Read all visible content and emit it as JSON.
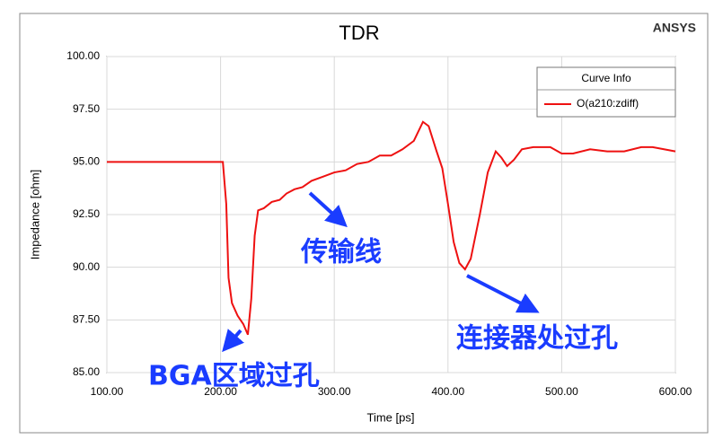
{
  "chart_data": {
    "type": "line",
    "title": "TDR",
    "brand": "ANSYS",
    "x_label": "Time [ps]",
    "y_label": "Impedance [ohm]",
    "legend_title": "Curve Info",
    "legend_position": "upper right",
    "grid": true,
    "xlim": [
      100,
      600
    ],
    "ylim": [
      85,
      100
    ],
    "xticks": [
      {
        "value": 100,
        "label": "100.00"
      },
      {
        "value": 200,
        "label": "200.00"
      },
      {
        "value": 300,
        "label": "300.00"
      },
      {
        "value": 400,
        "label": "400.00"
      },
      {
        "value": 500,
        "label": "500.00"
      },
      {
        "value": 600,
        "label": "600.00"
      }
    ],
    "yticks": [
      {
        "value": 85,
        "label": "85.00"
      },
      {
        "value": 87.5,
        "label": "87.50"
      },
      {
        "value": 90,
        "label": "90.00"
      },
      {
        "value": 92.5,
        "label": "92.50"
      },
      {
        "value": 95,
        "label": "95.00"
      },
      {
        "value": 97.5,
        "label": "97.50"
      },
      {
        "value": 100,
        "label": "100.00"
      }
    ],
    "x": [
      100,
      200,
      202,
      205,
      207,
      210,
      215,
      220,
      224,
      227,
      230,
      233,
      238,
      245,
      252,
      258,
      265,
      272,
      280,
      290,
      300,
      310,
      320,
      330,
      340,
      350,
      360,
      370,
      378,
      383,
      390,
      395,
      400,
      405,
      410,
      415,
      420,
      428,
      435,
      442,
      447,
      452,
      458,
      465,
      475,
      490,
      500,
      510,
      525,
      540,
      555,
      570,
      580,
      590,
      600
    ],
    "series": [
      {
        "name": "O(a210:zdiff)",
        "color": "#ee1111",
        "values": [
          95,
          95,
          95,
          93,
          89.5,
          88.3,
          87.7,
          87.3,
          86.8,
          88.5,
          91.5,
          92.7,
          92.8,
          93.1,
          93.2,
          93.5,
          93.7,
          93.8,
          94.1,
          94.3,
          94.5,
          94.6,
          94.9,
          95.0,
          95.3,
          95.3,
          95.6,
          96.0,
          96.9,
          96.7,
          95.5,
          94.7,
          93.0,
          91.2,
          90.2,
          89.9,
          90.4,
          92.5,
          94.5,
          95.5,
          95.2,
          94.8,
          95.1,
          95.6,
          95.7,
          95.7,
          95.4,
          95.4,
          95.6,
          95.5,
          95.5,
          95.7,
          95.7,
          95.6,
          95.5
        ]
      }
    ],
    "annotations": [
      "传输线",
      "BGA区域过孔",
      "连接器处过孔"
    ]
  }
}
